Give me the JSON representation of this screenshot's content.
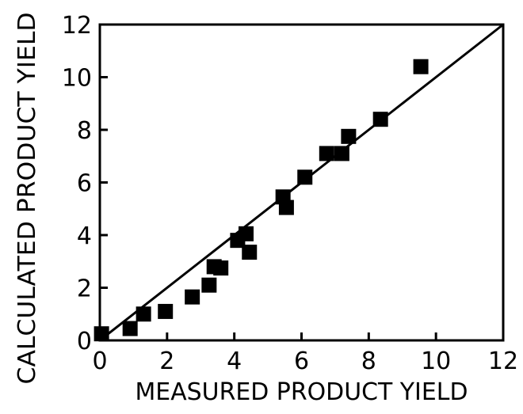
{
  "chart_data": {
    "type": "scatter",
    "title": "",
    "xlabel": "MEASURED PRODUCT YIELD",
    "ylabel": "CALCULATED PRODUCT YIELD",
    "xlim": [
      0,
      12
    ],
    "ylim": [
      0,
      12
    ],
    "xticks": [
      "0",
      "2",
      "4",
      "6",
      "8",
      "10",
      "12"
    ],
    "yticks": [
      "0",
      "2",
      "4",
      "6",
      "8",
      "10",
      "12"
    ],
    "grid": false,
    "legend": "none",
    "reference_line": {
      "from": [
        0,
        0
      ],
      "to": [
        12,
        12
      ]
    },
    "marker_color": "#000000",
    "points": [
      {
        "x": 0.05,
        "y": 0.25
      },
      {
        "x": 0.9,
        "y": 0.45
      },
      {
        "x": 1.3,
        "y": 1.0
      },
      {
        "x": 1.95,
        "y": 1.1
      },
      {
        "x": 2.75,
        "y": 1.65
      },
      {
        "x": 3.25,
        "y": 2.1
      },
      {
        "x": 3.4,
        "y": 2.8
      },
      {
        "x": 3.6,
        "y": 2.75
      },
      {
        "x": 4.1,
        "y": 3.8
      },
      {
        "x": 4.35,
        "y": 4.05
      },
      {
        "x": 4.45,
        "y": 3.35
      },
      {
        "x": 5.45,
        "y": 5.45
      },
      {
        "x": 5.55,
        "y": 5.05
      },
      {
        "x": 6.1,
        "y": 6.2
      },
      {
        "x": 6.75,
        "y": 7.1
      },
      {
        "x": 7.2,
        "y": 7.1
      },
      {
        "x": 7.4,
        "y": 7.75
      },
      {
        "x": 8.35,
        "y": 8.4
      },
      {
        "x": 9.55,
        "y": 10.4
      }
    ]
  }
}
